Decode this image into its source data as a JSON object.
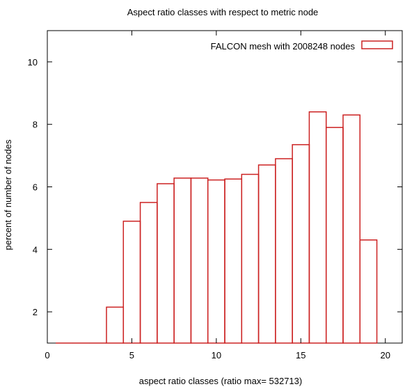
{
  "chart_data": {
    "type": "bar",
    "title": "Aspect ratio classes with respect to metric node",
    "xlabel": "aspect ratio classes (ratio max= 532713)",
    "ylabel": "percent of number of nodes",
    "xlim": [
      0,
      21
    ],
    "ylim": [
      1,
      11
    ],
    "xticks": [
      "0",
      "5",
      "10",
      "15",
      "20"
    ],
    "yticks": [
      "2",
      "4",
      "6",
      "8",
      "10"
    ],
    "grid": false,
    "legend_position": "top-right",
    "bar_color": "#cc2222",
    "categories": [
      1,
      2,
      3,
      4,
      5,
      6,
      7,
      8,
      9,
      10,
      11,
      12,
      13,
      14,
      15,
      16,
      17,
      18,
      19
    ],
    "series": [
      {
        "name": "FALCON mesh with 2008248 nodes",
        "values": [
          0,
          0,
          0,
          2.15,
          4.9,
          5.5,
          6.1,
          6.28,
          6.28,
          6.22,
          6.25,
          6.4,
          6.7,
          6.9,
          7.35,
          8.4,
          7.9,
          8.3,
          4.3
        ]
      }
    ]
  }
}
